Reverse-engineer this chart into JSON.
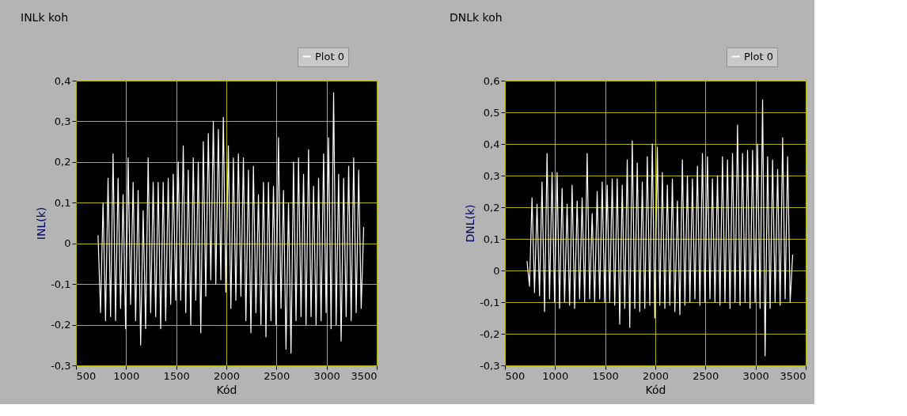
{
  "chart_data": [
    {
      "type": "line",
      "title": "INLk koh",
      "xlabel": "Kód",
      "ylabel": "INL(k)",
      "legend": "top right",
      "grid": true,
      "xlim": [
        500,
        3500
      ],
      "xticks": [
        500,
        1000,
        1500,
        2000,
        2500,
        3000,
        3500
      ],
      "ylim": [
        -0.3,
        0.4
      ],
      "yticks": [
        {
          "value": -0.3,
          "label": "-0,3"
        },
        {
          "value": -0.2,
          "label": "-0,2"
        },
        {
          "value": -0.1,
          "label": "-0,1"
        },
        0,
        {
          "value": 0.1,
          "label": "0,1"
        },
        {
          "value": 0.2,
          "label": "0,2"
        },
        {
          "value": 0.3,
          "label": "0,3"
        },
        {
          "value": 0.4,
          "label": "0,4"
        }
      ],
      "x": [
        720,
        745,
        770,
        795,
        820,
        845,
        870,
        895,
        920,
        945,
        970,
        995,
        1020,
        1045,
        1070,
        1095,
        1120,
        1145,
        1170,
        1195,
        1220,
        1245,
        1270,
        1295,
        1320,
        1345,
        1370,
        1395,
        1420,
        1445,
        1470,
        1495,
        1520,
        1545,
        1570,
        1595,
        1620,
        1645,
        1670,
        1695,
        1720,
        1745,
        1770,
        1795,
        1820,
        1845,
        1870,
        1895,
        1920,
        1945,
        1970,
        1995,
        2020,
        2045,
        2070,
        2095,
        2120,
        2145,
        2170,
        2195,
        2220,
        2245,
        2270,
        2295,
        2320,
        2345,
        2370,
        2395,
        2420,
        2445,
        2470,
        2495,
        2520,
        2545,
        2570,
        2595,
        2620,
        2645,
        2670,
        2695,
        2720,
        2745,
        2770,
        2795,
        2820,
        2845,
        2870,
        2895,
        2920,
        2945,
        2970,
        2995,
        3020,
        3045,
        3070,
        3095,
        3120,
        3145,
        3170,
        3195,
        3220,
        3245,
        3270,
        3295,
        3320,
        3345,
        3370
      ],
      "series": [
        {
          "name": "Plot 0",
          "color": "#ffffff",
          "line_style": "solid",
          "values": [
            0.02,
            -0.17,
            0.1,
            -0.19,
            0.16,
            -0.18,
            0.22,
            -0.19,
            0.16,
            -0.16,
            0.12,
            -0.21,
            0.21,
            -0.15,
            0.15,
            -0.19,
            0.13,
            -0.25,
            0.08,
            -0.21,
            0.21,
            -0.17,
            0.15,
            -0.18,
            0.15,
            -0.21,
            0.15,
            -0.19,
            0.16,
            -0.15,
            0.17,
            -0.14,
            0.2,
            -0.14,
            0.24,
            -0.17,
            0.18,
            -0.2,
            0.21,
            -0.14,
            0.2,
            -0.22,
            0.25,
            -0.13,
            0.27,
            -0.09,
            0.3,
            -0.1,
            0.28,
            -0.09,
            0.31,
            -0.12,
            0.24,
            -0.16,
            0.21,
            -0.14,
            0.22,
            -0.13,
            0.21,
            -0.19,
            0.18,
            -0.22,
            0.19,
            -0.17,
            0.12,
            -0.2,
            0.15,
            -0.23,
            0.15,
            -0.19,
            0.14,
            -0.2,
            0.26,
            -0.16,
            0.13,
            -0.26,
            0.1,
            -0.27,
            0.2,
            -0.19,
            0.21,
            -0.18,
            0.17,
            -0.2,
            0.23,
            -0.18,
            0.14,
            -0.2,
            0.16,
            -0.19,
            0.22,
            -0.17,
            0.26,
            -0.21,
            0.37,
            -0.2,
            0.17,
            -0.24,
            0.16,
            -0.18,
            0.19,
            -0.19,
            0.21,
            -0.17,
            0.18,
            -0.16,
            0.04
          ]
        }
      ]
    },
    {
      "type": "line",
      "title": "DNLk koh",
      "xlabel": "Kód",
      "ylabel": "DNL(k)",
      "legend": "top right",
      "grid": true,
      "xlim": [
        500,
        3500
      ],
      "xticks": [
        500,
        1000,
        1500,
        2000,
        2500,
        3000,
        3500
      ],
      "ylim": [
        -0.3,
        0.6
      ],
      "yticks": [
        {
          "value": -0.3,
          "label": "-0,3"
        },
        {
          "value": -0.2,
          "label": "-0,2"
        },
        {
          "value": -0.1,
          "label": "-0,1"
        },
        0,
        {
          "value": 0.1,
          "label": "0,1"
        },
        {
          "value": 0.2,
          "label": "0,2"
        },
        {
          "value": 0.3,
          "label": "0,3"
        },
        {
          "value": 0.4,
          "label": "0,4"
        },
        {
          "value": 0.5,
          "label": "0,5"
        },
        {
          "value": 0.6,
          "label": "0,6"
        }
      ],
      "x": [
        720,
        745,
        770,
        795,
        820,
        845,
        870,
        895,
        920,
        945,
        970,
        995,
        1020,
        1045,
        1070,
        1095,
        1120,
        1145,
        1170,
        1195,
        1220,
        1245,
        1270,
        1295,
        1320,
        1345,
        1370,
        1395,
        1420,
        1445,
        1470,
        1495,
        1520,
        1545,
        1570,
        1595,
        1620,
        1645,
        1670,
        1695,
        1720,
        1745,
        1770,
        1795,
        1820,
        1845,
        1870,
        1895,
        1920,
        1945,
        1970,
        1995,
        2020,
        2045,
        2070,
        2095,
        2120,
        2145,
        2170,
        2195,
        2220,
        2245,
        2270,
        2295,
        2320,
        2345,
        2370,
        2395,
        2420,
        2445,
        2470,
        2495,
        2520,
        2545,
        2570,
        2595,
        2620,
        2645,
        2670,
        2695,
        2720,
        2745,
        2770,
        2795,
        2820,
        2845,
        2870,
        2895,
        2920,
        2945,
        2970,
        2995,
        3020,
        3045,
        3070,
        3095,
        3120,
        3145,
        3170,
        3195,
        3220,
        3245,
        3270,
        3295,
        3320,
        3345,
        3370
      ],
      "series": [
        {
          "name": "Plot 0",
          "color": "#ffffff",
          "line_style": "solid",
          "values": [
            0.03,
            -0.05,
            0.23,
            -0.07,
            0.21,
            -0.08,
            0.28,
            -0.13,
            0.37,
            -0.09,
            0.31,
            -0.1,
            0.31,
            -0.12,
            0.26,
            -0.1,
            0.21,
            -0.11,
            0.27,
            -0.12,
            0.22,
            -0.09,
            0.23,
            -0.1,
            0.37,
            -0.09,
            0.18,
            -0.1,
            0.25,
            -0.09,
            0.28,
            -0.1,
            0.27,
            -0.1,
            0.29,
            -0.11,
            0.29,
            -0.17,
            0.27,
            -0.12,
            0.35,
            -0.18,
            0.41,
            -0.12,
            0.34,
            -0.13,
            0.28,
            -0.12,
            0.36,
            -0.11,
            0.4,
            -0.15,
            0.39,
            -0.11,
            0.31,
            -0.12,
            0.27,
            -0.11,
            0.29,
            -0.13,
            0.22,
            -0.14,
            0.35,
            -0.11,
            0.3,
            -0.1,
            0.29,
            -0.09,
            0.33,
            -0.11,
            0.37,
            -0.1,
            0.36,
            -0.09,
            0.29,
            -0.1,
            0.3,
            -0.11,
            0.36,
            -0.1,
            0.35,
            -0.12,
            0.37,
            -0.1,
            0.46,
            -0.11,
            0.37,
            -0.1,
            0.38,
            -0.12,
            0.38,
            -0.1,
            0.4,
            -0.12,
            0.54,
            -0.27,
            0.36,
            -0.12,
            0.35,
            -0.1,
            0.32,
            -0.11,
            0.42,
            -0.09,
            0.36,
            -0.1,
            0.05
          ]
        }
      ]
    }
  ]
}
